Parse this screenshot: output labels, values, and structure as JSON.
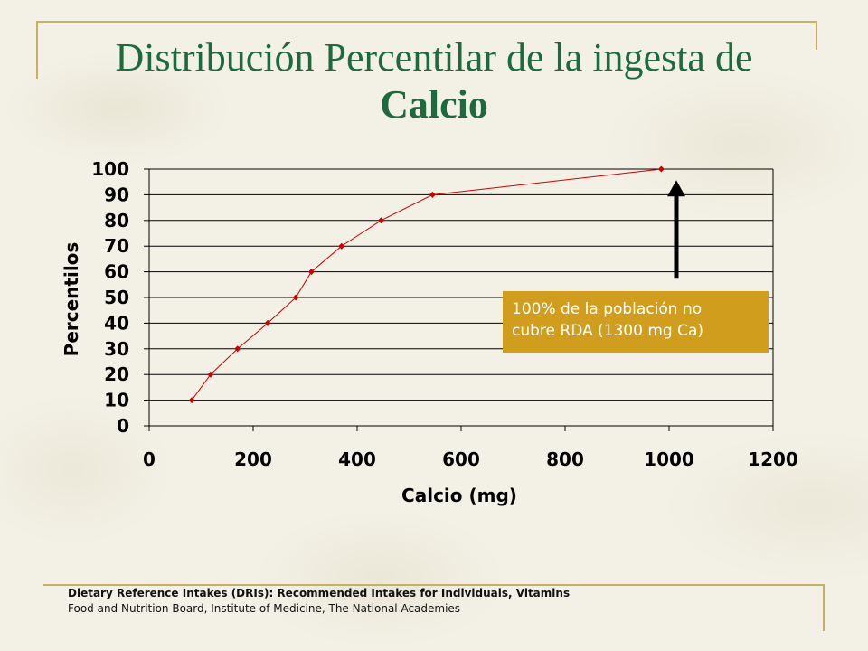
{
  "slide": {
    "title_line1": "Distribución Percentilar de la ingesta de",
    "title_line2": "Calcio",
    "callout_line1": "100% de la población no",
    "callout_line2": "cubre RDA (1300 mg Ca)",
    "source_line1": "Dietary Reference Intakes (DRIs): Recommended Intakes for Individuals, Vitamins",
    "source_line2": "Food and Nutrition Board, Institute of Medicine, The National Academies",
    "accent_title": "#1d6a3f",
    "accent_rule": "#c8b060",
    "callout_bg": "#d09e1c"
  },
  "chart_data": {
    "type": "line",
    "title": "",
    "xlabel": "Calcio (mg)",
    "ylabel": "Percentilos",
    "xlim": [
      0,
      1200
    ],
    "ylim": [
      0,
      100
    ],
    "x_ticks": [
      0,
      200,
      400,
      600,
      800,
      1000,
      1200
    ],
    "y_ticks": [
      0,
      10,
      20,
      30,
      40,
      50,
      60,
      70,
      80,
      90,
      100
    ],
    "grid": "horizontal",
    "legend": "none",
    "series": [
      {
        "color": "#cc0000",
        "points": [
          {
            "x": 82,
            "y": 10
          },
          {
            "x": 118,
            "y": 20
          },
          {
            "x": 170,
            "y": 30
          },
          {
            "x": 228,
            "y": 40
          },
          {
            "x": 282,
            "y": 50
          },
          {
            "x": 312,
            "y": 60
          },
          {
            "x": 370,
            "y": 70
          },
          {
            "x": 446,
            "y": 80
          },
          {
            "x": 545,
            "y": 90
          },
          {
            "x": 985,
            "y": 100
          }
        ]
      }
    ],
    "annotation_arrow": {
      "x": 1000,
      "y_from": 58,
      "y_to": 95,
      "color": "#000000"
    }
  }
}
